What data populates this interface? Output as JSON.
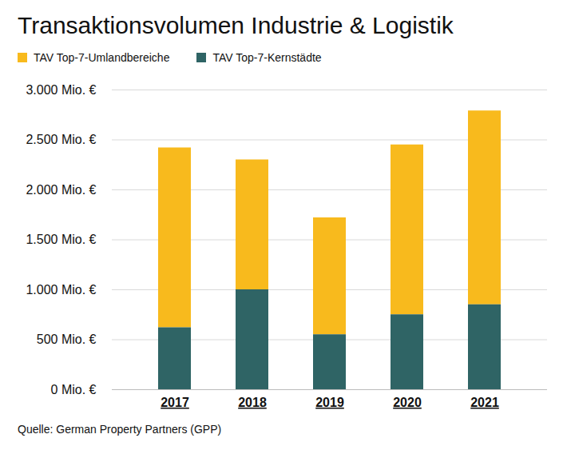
{
  "chart_data": {
    "type": "bar",
    "title": "Transaktionsvolumen Industrie & Logistik",
    "stacked": true,
    "categories": [
      "2017",
      "2018",
      "2019",
      "2020",
      "2021"
    ],
    "series": [
      {
        "name": "TAV Top-7-Umlandbereiche",
        "color": "#F8BA1D",
        "values": [
          1800,
          1300,
          1170,
          1700,
          1940
        ]
      },
      {
        "name": "TAV Top-7-Kernstädte",
        "color": "#2F6465",
        "values": [
          620,
          1000,
          550,
          750,
          850
        ]
      }
    ],
    "ylim": [
      0,
      3000
    ],
    "yticks": [
      {
        "value": 0,
        "label": "0 Mio. €"
      },
      {
        "value": 500,
        "label": "500 Mio. €"
      },
      {
        "value": 1000,
        "label": "1.000 Mio. €"
      },
      {
        "value": 1500,
        "label": "1.500 Mio. €"
      },
      {
        "value": 2000,
        "label": "2.000 Mio. €"
      },
      {
        "value": 2500,
        "label": "2.500 Mio. €"
      },
      {
        "value": 3000,
        "label": "3.000 Mio. €"
      }
    ],
    "grid": true,
    "legend": "top-left",
    "source": "Quelle: German Property Partners (GPP)"
  }
}
